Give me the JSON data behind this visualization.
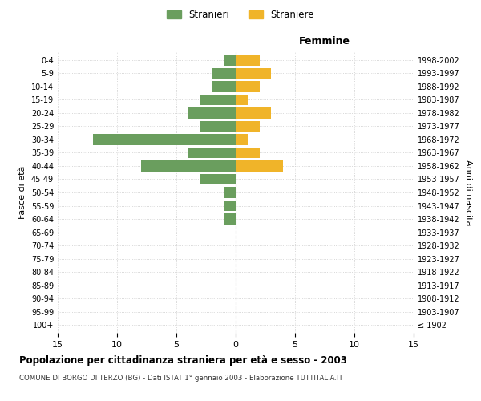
{
  "age_groups": [
    "100+",
    "95-99",
    "90-94",
    "85-89",
    "80-84",
    "75-79",
    "70-74",
    "65-69",
    "60-64",
    "55-59",
    "50-54",
    "45-49",
    "40-44",
    "35-39",
    "30-34",
    "25-29",
    "20-24",
    "15-19",
    "10-14",
    "5-9",
    "0-4"
  ],
  "birth_years": [
    "≤ 1902",
    "1903-1907",
    "1908-1912",
    "1913-1917",
    "1918-1922",
    "1923-1927",
    "1928-1932",
    "1933-1937",
    "1938-1942",
    "1943-1947",
    "1948-1952",
    "1953-1957",
    "1958-1962",
    "1963-1967",
    "1968-1972",
    "1973-1977",
    "1978-1982",
    "1983-1987",
    "1988-1992",
    "1993-1997",
    "1998-2002"
  ],
  "males": [
    0,
    0,
    0,
    0,
    0,
    0,
    0,
    0,
    1,
    1,
    1,
    3,
    8,
    4,
    12,
    3,
    4,
    3,
    2,
    2,
    1
  ],
  "females": [
    0,
    0,
    0,
    0,
    0,
    0,
    0,
    0,
    0,
    0,
    0,
    0,
    4,
    2,
    1,
    2,
    3,
    1,
    2,
    3,
    2
  ],
  "male_color": "#6a9e5e",
  "female_color": "#f0b429",
  "title": "Popolazione per cittadinanza straniera per età e sesso - 2003",
  "subtitle": "COMUNE DI BORGO DI TERZO (BG) - Dati ISTAT 1° gennaio 2003 - Elaborazione TUTTITALIA.IT",
  "xlabel_right": "Femmine",
  "ylabel_left": "Fasce di età",
  "ylabel_right": "Anni di nascita",
  "legend_stranieri": "Stranieri",
  "legend_straniere": "Straniere",
  "xlim": 15,
  "background_color": "#ffffff",
  "grid_color": "#cccccc",
  "bar_height": 0.8
}
